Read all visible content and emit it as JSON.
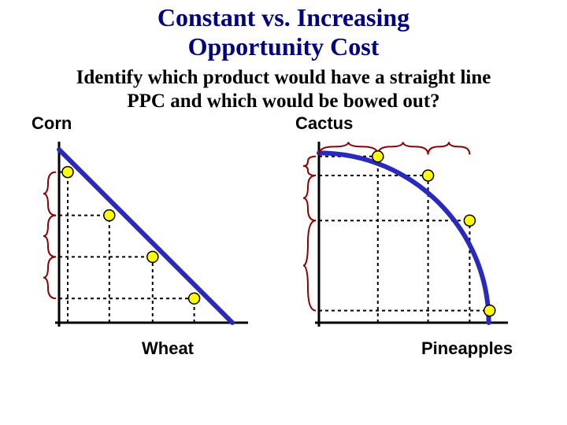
{
  "title_line1": "Constant vs. Increasing",
  "title_line2": "Opportunity Cost",
  "subtitle_line1": "Identify which product would have a straight line",
  "subtitle_line2": "PPC and which would be bowed out?",
  "colors": {
    "title": "#000080",
    "text": "#000000",
    "axis": "#000000",
    "curve": "#2929bf",
    "point_fill": "#ffff00",
    "point_stroke": "#000000",
    "dash": "#000000",
    "brace": "#8b0000",
    "background": "#ffffff"
  },
  "chart_left": {
    "type": "line-ppc",
    "y_label": "Corn",
    "x_label": "Wheat",
    "plot_size": 220,
    "axis_width": 3,
    "curve_width": 6,
    "curve_start": [
      0,
      1.0
    ],
    "curve_end": [
      1.0,
      0
    ],
    "points": [
      {
        "x": 0.05,
        "y": 0.87
      },
      {
        "x": 0.29,
        "y": 0.62
      },
      {
        "x": 0.54,
        "y": 0.38
      },
      {
        "x": 0.78,
        "y": 0.14
      }
    ],
    "point_radius": 7,
    "brace_segments": [
      {
        "from": 0.87,
        "to": 0.62
      },
      {
        "from": 0.62,
        "to": 0.38
      },
      {
        "from": 0.38,
        "to": 0.14
      }
    ]
  },
  "chart_right": {
    "type": "bowed-ppc",
    "y_label": "Cactus",
    "x_label": "Pineapples",
    "plot_size": 220,
    "axis_width": 3,
    "curve_width": 6,
    "curve_start_y": 0.98,
    "curve_end_x": 0.98,
    "points": [
      {
        "x": 0.34,
        "y": 0.96
      },
      {
        "x": 0.63,
        "y": 0.85
      },
      {
        "x": 0.87,
        "y": 0.59
      },
      {
        "x": 0.985,
        "y": 0.07
      }
    ],
    "point_radius": 7,
    "brace_x_segments": [
      {
        "from": 0.0,
        "to": 0.34
      },
      {
        "from": 0.34,
        "to": 0.63
      },
      {
        "from": 0.63,
        "to": 0.87
      }
    ],
    "brace_y_segments": [
      {
        "from": 0.96,
        "to": 0.85
      },
      {
        "from": 0.85,
        "to": 0.59
      },
      {
        "from": 0.59,
        "to": 0.07
      }
    ]
  }
}
